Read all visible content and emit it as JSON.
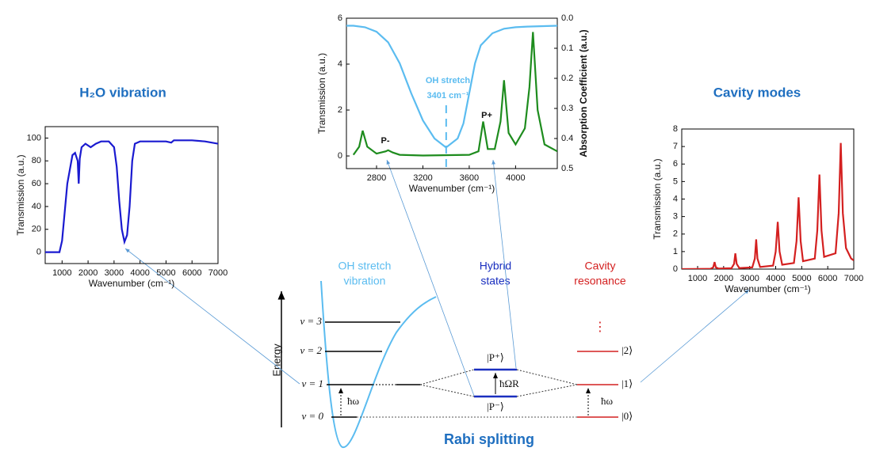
{
  "chart_data": [
    {
      "type": "line",
      "title": "H₂O vibration",
      "xlabel": "Wavenumber (cm⁻¹)",
      "ylabel": "Transmission (a.u.)",
      "xlim": [
        350,
        7000
      ],
      "ylim": [
        -10,
        110
      ],
      "xticks": [
        1000,
        2000,
        3000,
        4000,
        5000,
        6000,
        7000
      ],
      "yticks": [
        0,
        20,
        40,
        60,
        80,
        100
      ],
      "series": [
        {
          "color": "#1a1ad0",
          "x": [
            350,
            900,
            1000,
            1200,
            1400,
            1500,
            1600,
            1640,
            1680,
            1750,
            1900,
            2100,
            2300,
            2500,
            2800,
            3000,
            3100,
            3200,
            3300,
            3400,
            3500,
            3600,
            3700,
            3800,
            4000,
            4500,
            5000,
            5200,
            5300,
            5500,
            6000,
            6500,
            7000
          ],
          "values": [
            0,
            0,
            10,
            60,
            85,
            87,
            80,
            60,
            82,
            92,
            95,
            92,
            95,
            97,
            97,
            92,
            75,
            45,
            20,
            9,
            15,
            40,
            80,
            95,
            97,
            97,
            97,
            96,
            98,
            98,
            98,
            97,
            95
          ]
        }
      ]
    },
    {
      "type": "line",
      "xlabel": "Wavenumber (cm⁻¹)",
      "ylabel": "Transmission (a.u.)",
      "y2label": "Absorption Coefficient (a.u.)",
      "xlim": [
        2540,
        4360
      ],
      "ylim": [
        -0.55,
        6
      ],
      "y2lim": [
        0.5,
        0
      ],
      "xticks": [
        2800,
        3200,
        3600,
        4000
      ],
      "yticks": [
        0,
        2,
        4,
        6
      ],
      "y2ticks": [
        {
          "value": 0,
          "label": "0.0"
        },
        0.1,
        0.2,
        0.3,
        0.4,
        0.5
      ],
      "annotations": [
        "OH stretch",
        "3401 cm⁻¹",
        "P-",
        "P+"
      ],
      "marker_x": 3401,
      "series": [
        {
          "axis": "y2",
          "color": "#5bbcf0",
          "x": [
            2540,
            2600,
            2700,
            2800,
            2900,
            3000,
            3100,
            3200,
            3300,
            3400,
            3500,
            3550,
            3600,
            3650,
            3700,
            3800,
            3900,
            4000,
            4100,
            4360
          ],
          "values": [
            0.025,
            0.025,
            0.03,
            0.045,
            0.08,
            0.15,
            0.25,
            0.34,
            0.4,
            0.43,
            0.4,
            0.35,
            0.25,
            0.15,
            0.09,
            0.05,
            0.035,
            0.03,
            0.028,
            0.025
          ]
        },
        {
          "color": "#1e8c1e",
          "x": [
            2600,
            2650,
            2680,
            2720,
            2800,
            2880,
            2900,
            2940,
            3000,
            3200,
            3600,
            3680,
            3720,
            3760,
            3820,
            3870,
            3900,
            3940,
            4000,
            4080,
            4120,
            4150,
            4190,
            4250,
            4360
          ],
          "values": [
            0.05,
            0.4,
            1.1,
            0.4,
            0.1,
            0.2,
            0.25,
            0.15,
            0.05,
            0.02,
            0.05,
            0.2,
            1.5,
            0.3,
            0.3,
            1.5,
            3.3,
            1.0,
            0.5,
            1.2,
            3.0,
            5.4,
            2.0,
            0.5,
            0.2
          ]
        }
      ]
    },
    {
      "type": "line",
      "title": "Cavity modes",
      "xlabel": "Wavenumber (cm⁻¹)",
      "ylabel": "Transmission (a.u.)",
      "xlim": [
        390,
        7000
      ],
      "ylim": [
        0,
        8
      ],
      "xticks": [
        1000,
        2000,
        3000,
        4000,
        5000,
        6000,
        7000
      ],
      "yticks": [
        0,
        1,
        2,
        3,
        4,
        5,
        6,
        7,
        8
      ],
      "series": [
        {
          "color": "#d42020",
          "x": [
            390,
            1500,
            1600,
            1650,
            1700,
            1800,
            2300,
            2400,
            2450,
            2500,
            2600,
            3100,
            3200,
            3250,
            3300,
            3400,
            3900,
            4000,
            4080,
            4150,
            4250,
            4700,
            4800,
            4880,
            4960,
            5050,
            5500,
            5600,
            5680,
            5760,
            5860,
            6300,
            6420,
            6500,
            6580,
            6700,
            6900,
            7000
          ],
          "values": [
            0,
            0.02,
            0.1,
            0.4,
            0.1,
            0.03,
            0.05,
            0.3,
            0.9,
            0.3,
            0.06,
            0.1,
            0.6,
            1.7,
            0.6,
            0.12,
            0.2,
            1.0,
            2.7,
            1.0,
            0.25,
            0.35,
            1.6,
            4.1,
            1.6,
            0.45,
            0.6,
            2.2,
            5.4,
            2.2,
            0.7,
            0.9,
            3.2,
            7.2,
            3.2,
            1.2,
            0.6,
            0.5
          ]
        }
      ]
    }
  ],
  "diagram": {
    "energy_label": "Energy",
    "levels": [
      "ν = 0",
      "ν = 1",
      "ν = 2",
      "ν = 3"
    ],
    "headers": {
      "vibration": [
        "OH stretch",
        "vibration"
      ],
      "hybrid": [
        "Hybrid",
        "states"
      ],
      "cavity": [
        "Cavity",
        "resonance"
      ]
    },
    "hbar_omega": "ħω",
    "rabi_label": "ħΩR",
    "p_plus": "|P⁺⟩",
    "p_minus": "|P⁻⟩",
    "kets": [
      "|0⟩",
      "|1⟩",
      "|2⟩"
    ],
    "dots": "⋮",
    "caption": "Rabi splitting"
  }
}
